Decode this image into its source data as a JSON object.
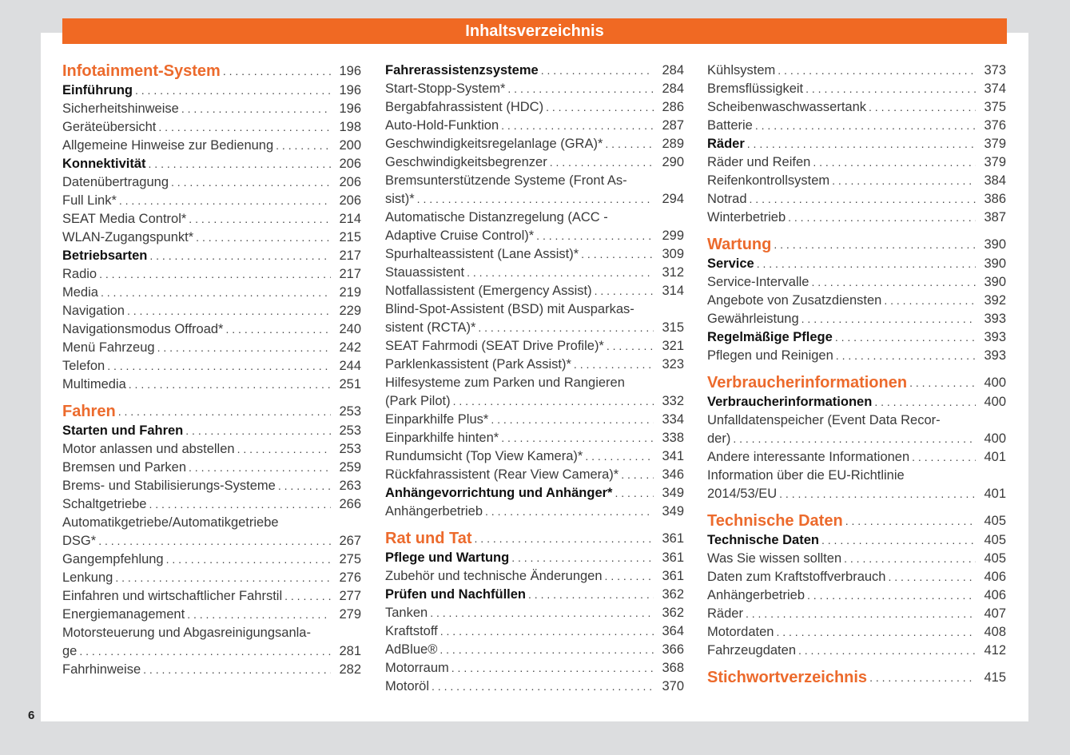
{
  "header": {
    "title": "Inhaltsverzeichnis"
  },
  "page_number": "6",
  "colors": {
    "accent": "#f06923",
    "background": "#dcdddf"
  },
  "columns": [
    [
      {
        "level": "h1",
        "lines": [
          "Infotainment-System"
        ],
        "page": "196"
      },
      {
        "level": "h2",
        "lines": [
          "Einführung"
        ],
        "page": "196"
      },
      {
        "level": "n",
        "lines": [
          "Sicherheitshinweise"
        ],
        "page": "196"
      },
      {
        "level": "n",
        "lines": [
          "Geräteübersicht"
        ],
        "page": "198"
      },
      {
        "level": "n",
        "lines": [
          "Allgemeine Hinweise zur Bedienung"
        ],
        "page": "200"
      },
      {
        "level": "h2",
        "lines": [
          "Konnektivität"
        ],
        "page": "206"
      },
      {
        "level": "n",
        "lines": [
          "Datenübertragung"
        ],
        "page": "206"
      },
      {
        "level": "n",
        "lines": [
          "Full Link*"
        ],
        "page": "206"
      },
      {
        "level": "n",
        "lines": [
          "SEAT Media Control*"
        ],
        "page": "214"
      },
      {
        "level": "n",
        "lines": [
          "WLAN-Zugangspunkt*"
        ],
        "page": "215"
      },
      {
        "level": "h2",
        "lines": [
          "Betriebsarten"
        ],
        "page": "217"
      },
      {
        "level": "n",
        "lines": [
          "Radio"
        ],
        "page": "217"
      },
      {
        "level": "n",
        "lines": [
          "Media"
        ],
        "page": "219"
      },
      {
        "level": "n",
        "lines": [
          "Navigation"
        ],
        "page": "229"
      },
      {
        "level": "n",
        "lines": [
          "Navigationsmodus Offroad*"
        ],
        "page": "240"
      },
      {
        "level": "n",
        "lines": [
          "Menü Fahrzeug"
        ],
        "page": "242"
      },
      {
        "level": "n",
        "lines": [
          "Telefon"
        ],
        "page": "244"
      },
      {
        "level": "n",
        "lines": [
          "Multimedia"
        ],
        "page": "251"
      },
      {
        "level": "h1",
        "lines": [
          "Fahren"
        ],
        "page": "253"
      },
      {
        "level": "h2",
        "lines": [
          "Starten und Fahren"
        ],
        "page": "253"
      },
      {
        "level": "n",
        "lines": [
          "Motor anlassen und abstellen"
        ],
        "page": "253"
      },
      {
        "level": "n",
        "lines": [
          "Bremsen und Parken"
        ],
        "page": "259"
      },
      {
        "level": "n",
        "lines": [
          "Brems- und Stabilisierungs-Systeme"
        ],
        "page": "263"
      },
      {
        "level": "n",
        "lines": [
          "Schaltgetriebe"
        ],
        "page": "266"
      },
      {
        "level": "n",
        "lines": [
          "Automatikgetriebe/Automatikgetriebe",
          "DSG*"
        ],
        "page": "267"
      },
      {
        "level": "n",
        "lines": [
          "Gangempfehlung"
        ],
        "page": "275"
      },
      {
        "level": "n",
        "lines": [
          "Lenkung"
        ],
        "page": "276"
      },
      {
        "level": "n",
        "lines": [
          "Einfahren und wirtschaftlicher Fahrstil"
        ],
        "page": "277"
      },
      {
        "level": "n",
        "lines": [
          "Energiemanagement"
        ],
        "page": "279"
      },
      {
        "level": "n",
        "lines": [
          "Motorsteuerung und Abgasreinigungsanla-",
          "ge"
        ],
        "page": "281"
      },
      {
        "level": "n",
        "lines": [
          "Fahrhinweise"
        ],
        "page": "282"
      }
    ],
    [
      {
        "level": "h2",
        "lines": [
          "Fahrerassistenzsysteme"
        ],
        "page": "284"
      },
      {
        "level": "n",
        "lines": [
          "Start-Stopp-System*"
        ],
        "page": "284"
      },
      {
        "level": "n",
        "lines": [
          "Bergabfahrassistent (HDC)"
        ],
        "page": "286"
      },
      {
        "level": "n",
        "lines": [
          "Auto-Hold-Funktion"
        ],
        "page": "287"
      },
      {
        "level": "n",
        "lines": [
          "Geschwindigkeitsregelanlage (GRA)*"
        ],
        "page": "289"
      },
      {
        "level": "n",
        "lines": [
          "Geschwindigkeitsbegrenzer"
        ],
        "page": "290"
      },
      {
        "level": "n",
        "lines": [
          "Bremsunterstützende Systeme (Front As-",
          "sist)*"
        ],
        "page": "294"
      },
      {
        "level": "n",
        "lines": [
          "Automatische Distanzregelung (ACC -",
          "Adaptive Cruise Control)*"
        ],
        "page": "299"
      },
      {
        "level": "n",
        "lines": [
          "Spurhalteassistent (Lane Assist)*"
        ],
        "page": "309"
      },
      {
        "level": "n",
        "lines": [
          "Stauassistent"
        ],
        "page": "312"
      },
      {
        "level": "n",
        "lines": [
          "Notfallassistent (Emergency Assist)"
        ],
        "page": "314"
      },
      {
        "level": "n",
        "lines": [
          "Blind-Spot-Assistent (BSD) mit Ausparkas-",
          "sistent (RCTA)*"
        ],
        "page": "315"
      },
      {
        "level": "n",
        "lines": [
          "SEAT Fahrmodi (SEAT Drive Profile)*"
        ],
        "page": "321"
      },
      {
        "level": "n",
        "lines": [
          "Parklenkassistent (Park Assist)*"
        ],
        "page": "323"
      },
      {
        "level": "n",
        "lines": [
          "Hilfesysteme zum Parken und Rangieren",
          "(Park Pilot)"
        ],
        "page": "332"
      },
      {
        "level": "n",
        "lines": [
          "Einparkhilfe Plus*"
        ],
        "page": "334"
      },
      {
        "level": "n",
        "lines": [
          "Einparkhilfe hinten*"
        ],
        "page": "338"
      },
      {
        "level": "n",
        "lines": [
          "Rundumsicht (Top View Kamera)*"
        ],
        "page": "341"
      },
      {
        "level": "n",
        "lines": [
          "Rückfahrassistent (Rear View Camera)*"
        ],
        "page": "346"
      },
      {
        "level": "h2",
        "lines": [
          "Anhängevorrichtung und Anhänger*"
        ],
        "page": "349"
      },
      {
        "level": "n",
        "lines": [
          "Anhängerbetrieb"
        ],
        "page": "349"
      },
      {
        "level": "h1",
        "lines": [
          "Rat und Tat"
        ],
        "page": "361"
      },
      {
        "level": "h2",
        "lines": [
          "Pflege und Wartung"
        ],
        "page": "361"
      },
      {
        "level": "n",
        "lines": [
          "Zubehör und technische Änderungen"
        ],
        "page": "361"
      },
      {
        "level": "h2",
        "lines": [
          "Prüfen und Nachfüllen"
        ],
        "page": "362"
      },
      {
        "level": "n",
        "lines": [
          "Tanken"
        ],
        "page": "362"
      },
      {
        "level": "n",
        "lines": [
          "Kraftstoff"
        ],
        "page": "364"
      },
      {
        "level": "n",
        "lines": [
          "AdBlue®"
        ],
        "page": "366"
      },
      {
        "level": "n",
        "lines": [
          "Motorraum"
        ],
        "page": "368"
      },
      {
        "level": "n",
        "lines": [
          "Motoröl"
        ],
        "page": "370"
      }
    ],
    [
      {
        "level": "n",
        "lines": [
          "Kühlsystem"
        ],
        "page": "373"
      },
      {
        "level": "n",
        "lines": [
          "Bremsflüssigkeit"
        ],
        "page": "374"
      },
      {
        "level": "n",
        "lines": [
          "Scheibenwaschwassertank"
        ],
        "page": "375"
      },
      {
        "level": "n",
        "lines": [
          "Batterie"
        ],
        "page": "376"
      },
      {
        "level": "h2",
        "lines": [
          "Räder"
        ],
        "page": "379"
      },
      {
        "level": "n",
        "lines": [
          "Räder und Reifen"
        ],
        "page": "379"
      },
      {
        "level": "n",
        "lines": [
          "Reifenkontrollsystem"
        ],
        "page": "384"
      },
      {
        "level": "n",
        "lines": [
          "Notrad"
        ],
        "page": "386"
      },
      {
        "level": "n",
        "lines": [
          "Winterbetrieb"
        ],
        "page": "387"
      },
      {
        "level": "h1",
        "lines": [
          "Wartung"
        ],
        "page": "390"
      },
      {
        "level": "h2",
        "lines": [
          "Service"
        ],
        "page": "390"
      },
      {
        "level": "n",
        "lines": [
          "Service-Intervalle"
        ],
        "page": "390"
      },
      {
        "level": "n",
        "lines": [
          "Angebote von Zusatzdiensten"
        ],
        "page": "392"
      },
      {
        "level": "n",
        "lines": [
          "Gewährleistung"
        ],
        "page": "393"
      },
      {
        "level": "h2",
        "lines": [
          "Regelmäßige Pflege"
        ],
        "page": "393"
      },
      {
        "level": "n",
        "lines": [
          "Pflegen und Reinigen"
        ],
        "page": "393"
      },
      {
        "level": "h1",
        "lines": [
          "Verbraucherinformationen"
        ],
        "page": "400"
      },
      {
        "level": "h2",
        "lines": [
          "Verbraucherinformationen"
        ],
        "page": "400"
      },
      {
        "level": "n",
        "lines": [
          "Unfalldatenspeicher (Event Data Recor-",
          "der)"
        ],
        "page": "400"
      },
      {
        "level": "n",
        "lines": [
          "Andere interessante Informationen"
        ],
        "page": "401"
      },
      {
        "level": "n",
        "lines": [
          "Information über die EU-Richtlinie",
          "2014/53/EU"
        ],
        "page": "401"
      },
      {
        "level": "h1",
        "lines": [
          "Technische Daten"
        ],
        "page": "405"
      },
      {
        "level": "h2",
        "lines": [
          "Technische Daten"
        ],
        "page": "405"
      },
      {
        "level": "n",
        "lines": [
          "Was Sie wissen sollten"
        ],
        "page": "405"
      },
      {
        "level": "n",
        "lines": [
          "Daten zum Kraftstoffverbrauch"
        ],
        "page": "406"
      },
      {
        "level": "n",
        "lines": [
          "Anhängerbetrieb"
        ],
        "page": "406"
      },
      {
        "level": "n",
        "lines": [
          "Räder"
        ],
        "page": "407"
      },
      {
        "level": "n",
        "lines": [
          "Motordaten"
        ],
        "page": "408"
      },
      {
        "level": "n",
        "lines": [
          "Fahrzeugdaten"
        ],
        "page": "412"
      },
      {
        "level": "h1",
        "lines": [
          "Stichwortverzeichnis"
        ],
        "page": "415"
      }
    ]
  ]
}
